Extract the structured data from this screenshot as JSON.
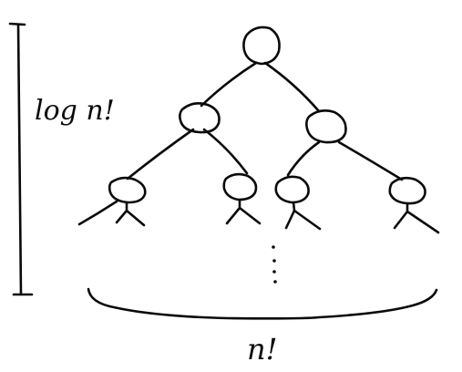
{
  "diagram": {
    "height_label": "log n!",
    "width_label": "n!",
    "ellipsis": "⋮",
    "ink_color": "#0a0a0a",
    "background": "#ffffff"
  }
}
